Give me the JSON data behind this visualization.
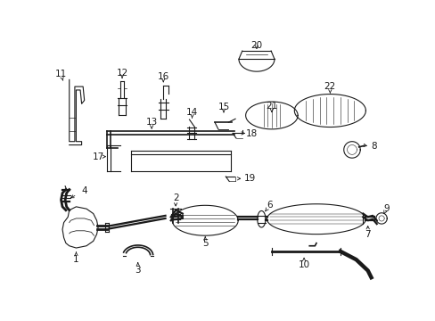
{
  "background_color": "#ffffff",
  "line_color": "#1a1a1a",
  "parts_layout": {
    "fig_w": 4.89,
    "fig_h": 3.6,
    "dpi": 100
  }
}
